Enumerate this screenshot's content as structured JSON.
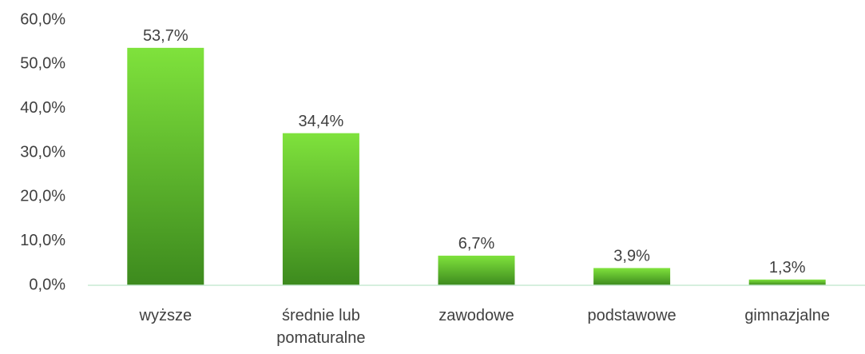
{
  "chart_data": {
    "type": "bar",
    "categories": [
      "wyższe",
      "średnie lub pomaturalne",
      "zawodowe",
      "podstawowe",
      "gimnazjalne"
    ],
    "values": [
      53.7,
      34.4,
      6.7,
      3.9,
      1.3
    ],
    "value_labels": [
      "53,7%",
      "34,4%",
      "6,7%",
      "3,9%",
      "1,3%"
    ],
    "color": "#5cb82c",
    "ylim": [
      0,
      60
    ],
    "yticks": [
      {
        "value": 0,
        "label": "0,0%"
      },
      {
        "value": 10,
        "label": "10,0%"
      },
      {
        "value": 20,
        "label": "20,0%"
      },
      {
        "value": 30,
        "label": "30,0%"
      },
      {
        "value": 40,
        "label": "40,0%"
      },
      {
        "value": 50,
        "label": "50,0%"
      },
      {
        "value": 60,
        "label": "60,0%"
      }
    ],
    "grid": false
  }
}
